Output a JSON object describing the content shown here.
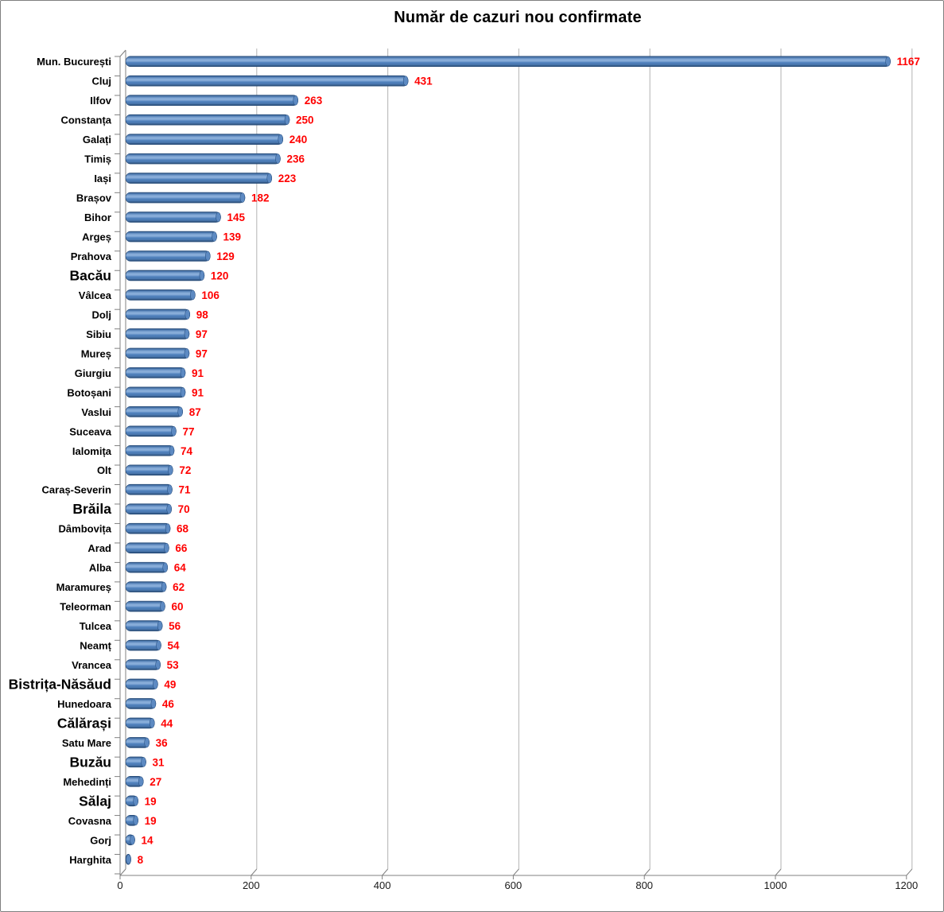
{
  "header": {
    "title": "Număr de cazuri nou confirmate"
  },
  "chart_data": {
    "type": "bar",
    "orientation": "horizontal",
    "title": "Număr de cazuri nou confirmate",
    "categories": [
      "Mun. București",
      "Cluj",
      "Ilfov",
      "Constanța",
      "Galați",
      "Timiș",
      "Iași",
      "Brașov",
      "Bihor",
      "Argeș",
      "Prahova",
      "Bacău",
      "Vâlcea",
      "Dolj",
      "Sibiu",
      "Mureș",
      "Giurgiu",
      "Botoșani",
      "Vaslui",
      "Suceava",
      "Ialomița",
      "Olt",
      "Caraș-Severin",
      "Brăila",
      "Dâmbovița",
      "Arad",
      "Alba",
      "Maramureș",
      "Teleorman",
      "Tulcea",
      "Neamț",
      "Vrancea",
      "Bistrița-Năsăud",
      "Hunedoara",
      "Călărași",
      "Satu Mare",
      "Buzău",
      "Mehedinți",
      "Sălaj",
      "Covasna",
      "Gorj",
      "Harghita"
    ],
    "values": [
      1167,
      431,
      263,
      250,
      240,
      236,
      223,
      182,
      145,
      139,
      129,
      120,
      106,
      98,
      97,
      97,
      91,
      91,
      87,
      77,
      74,
      72,
      71,
      70,
      68,
      66,
      64,
      62,
      60,
      56,
      54,
      53,
      49,
      46,
      44,
      36,
      31,
      27,
      19,
      19,
      14,
      8
    ],
    "xlabel": "",
    "ylabel": "",
    "xlim": [
      0,
      1200
    ],
    "x_ticks": [
      0,
      200,
      400,
      600,
      800,
      1000,
      1200
    ],
    "grid": true,
    "legend": false,
    "value_labels": true,
    "colors": {
      "bar": "#4F81BD",
      "bar_dark": "#24456B",
      "bar_mid": "#4A77AE",
      "bar_light": "#88ADD9",
      "bar_stroke": "#1F4677",
      "cap_fill": "#5D8AC2",
      "value_label": "#FF0000",
      "gridline": "#BFBFBF",
      "axis": "#808080",
      "tick_label": "#1A1A1A",
      "category_label": "#000000",
      "title": "#000000"
    }
  }
}
